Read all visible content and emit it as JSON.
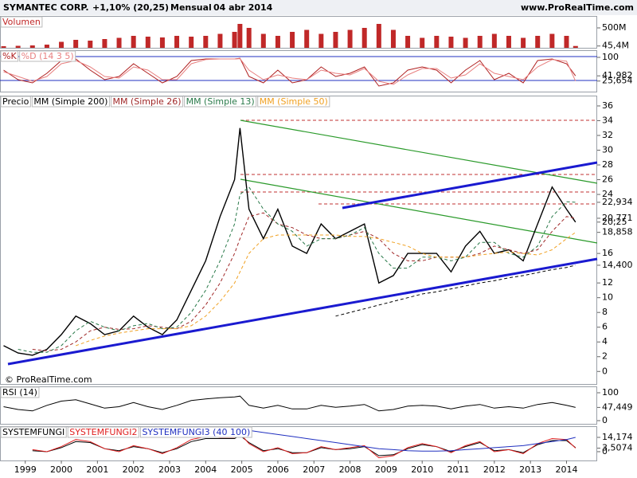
{
  "header": {
    "name": "SYMANTEC CORP.",
    "change": "+1,10% (20,25)",
    "period": "Mensual",
    "date": "04 abr 2014",
    "website": "www.ProRealTime.com",
    "copyright": "© ProRealTime.com"
  },
  "chart_data": [
    {
      "type": "bar",
      "x": [
        1998.4,
        1998.8,
        1999.2,
        1999.6,
        2000,
        2000.4,
        2000.8,
        2001.2,
        2001.6,
        2002,
        2002.4,
        2002.8,
        2003.2,
        2003.6,
        2004,
        2004.4,
        2004.8,
        2004.95,
        2005.2,
        2005.6,
        2006,
        2006.4,
        2006.8,
        2007.2,
        2007.6,
        2008,
        2008.4,
        2008.8,
        2009.2,
        2009.6,
        2010,
        2010.4,
        2010.8,
        2011.2,
        2011.6,
        2012,
        2012.4,
        2012.8,
        2013.2,
        2013.6,
        2014,
        2014.25
      ],
      "series": [
        {
          "name": "Volumen",
          "color": "#c02828",
          "values": [
            40000000,
            50000000,
            60000000,
            80000000,
            150000000,
            200000000,
            180000000,
            220000000,
            250000000,
            300000000,
            280000000,
            260000000,
            300000000,
            280000000,
            300000000,
            350000000,
            400000000,
            600000000,
            500000000,
            350000000,
            300000000,
            400000000,
            450000000,
            350000000,
            400000000,
            450000000,
            500000000,
            600000000,
            450000000,
            300000000,
            250000000,
            300000000,
            280000000,
            250000000,
            300000000,
            350000000,
            300000000,
            250000000,
            300000000,
            350000000,
            300000000,
            45400000
          ]
        }
      ],
      "xlim": [
        1998.3,
        2014.85
      ],
      "ylim": [
        0,
        800000000
      ],
      "yticks": [
        {
          "value": 500000000,
          "label": "500M"
        },
        {
          "value": 45400000,
          "label": "45,4M"
        }
      ]
    },
    {
      "type": "line",
      "x": [
        1998.4,
        1998.8,
        1999.2,
        1999.6,
        2000,
        2000.4,
        2000.8,
        2001.2,
        2001.6,
        2002,
        2002.4,
        2002.8,
        2003.2,
        2003.6,
        2004,
        2004.4,
        2004.8,
        2004.95,
        2005.2,
        2005.6,
        2006,
        2006.4,
        2006.8,
        2007.2,
        2007.6,
        2008,
        2008.4,
        2008.8,
        2009.2,
        2009.6,
        2010,
        2010.4,
        2010.8,
        2011.2,
        2011.6,
        2012,
        2012.4,
        2012.8,
        2013.2,
        2013.6,
        2014,
        2014.25
      ],
      "series": [
        {
          "name": "%K",
          "color": "#b02020",
          "values": [
            60,
            30,
            20,
            50,
            90,
            95,
            60,
            30,
            40,
            80,
            50,
            20,
            40,
            90,
            95,
            95,
            95,
            97,
            40,
            20,
            60,
            20,
            30,
            70,
            40,
            50,
            70,
            10,
            20,
            60,
            70,
            60,
            20,
            60,
            90,
            30,
            50,
            20,
            90,
            95,
            80,
            41.982
          ]
        },
        {
          "name": "%D (14 3 5)",
          "color": "#e88080",
          "values": [
            55,
            40,
            25,
            40,
            80,
            90,
            70,
            40,
            35,
            70,
            60,
            30,
            30,
            80,
            93,
            95,
            95,
            96,
            60,
            30,
            45,
            35,
            30,
            60,
            50,
            45,
            65,
            25,
            15,
            45,
            65,
            65,
            35,
            45,
            80,
            50,
            40,
            30,
            70,
            93,
            88,
            25.654
          ]
        }
      ],
      "xlim": [
        1998.3,
        2014.85
      ],
      "ylim": [
        -7.5,
        122.5
      ],
      "yticks": [
        100,
        {
          "value": 41.982,
          "label": "41,982"
        },
        {
          "value": 25.654,
          "label": "25,654"
        }
      ]
    },
    {
      "type": "line",
      "x": [
        1998.4,
        1998.8,
        1999.2,
        1999.6,
        2000,
        2000.4,
        2000.8,
        2001.2,
        2001.6,
        2002,
        2002.4,
        2002.8,
        2003.2,
        2003.6,
        2004,
        2004.4,
        2004.8,
        2004.95,
        2005.2,
        2005.6,
        2006,
        2006.4,
        2006.8,
        2007.2,
        2007.6,
        2008,
        2008.4,
        2008.8,
        2009.2,
        2009.6,
        2010,
        2010.4,
        2010.8,
        2011.2,
        2011.6,
        2012,
        2012.4,
        2012.8,
        2013.2,
        2013.6,
        2014,
        2014.25
      ],
      "series": [
        {
          "name": "Precio",
          "color": "#000000",
          "values": [
            3.5,
            2.5,
            2.2,
            3,
            5,
            7.5,
            6.5,
            5,
            5.5,
            7.5,
            6,
            5,
            7,
            11,
            15,
            21,
            26,
            33,
            22,
            18,
            22,
            17,
            16,
            20,
            18,
            19,
            20,
            12,
            13,
            16,
            16,
            16,
            13.5,
            17,
            19,
            16,
            16.5,
            15,
            20,
            25,
            22,
            20.25
          ]
        },
        {
          "name": "MM (Simple 200)",
          "color": "#000000",
          "dashed": true,
          "values": [
            null,
            null,
            null,
            null,
            null,
            null,
            null,
            null,
            null,
            null,
            null,
            null,
            null,
            null,
            null,
            null,
            null,
            null,
            null,
            null,
            null,
            null,
            null,
            null,
            7.5,
            8,
            8.5,
            9,
            9.5,
            10,
            10.5,
            10.8,
            11.2,
            11.6,
            12,
            12.3,
            12.7,
            13,
            13.4,
            13.8,
            14.1,
            14.4
          ]
        },
        {
          "name": "MM (Simple 26)",
          "color": "#a02828",
          "dashed": true,
          "values": [
            null,
            null,
            3,
            2.8,
            3,
            4,
            5.5,
            6,
            5.7,
            5.8,
            6.2,
            6,
            5.8,
            6.8,
            9,
            12,
            16,
            18,
            21,
            21.5,
            20,
            19.5,
            18.5,
            18,
            18,
            18.5,
            19,
            18,
            16,
            15,
            15,
            15.5,
            15.5,
            15.5,
            16,
            17,
            16.5,
            16,
            16.5,
            19,
            21,
            20.771
          ]
        },
        {
          "name": "MM (Simple 13)",
          "color": "#2a7a4a",
          "dashed": true,
          "values": [
            null,
            3,
            2.6,
            2.6,
            3.5,
            5.5,
            6.8,
            6,
            5.5,
            6.2,
            6.5,
            5.8,
            6,
            8,
            11,
            15,
            20,
            24,
            25,
            22,
            20,
            19,
            17,
            18,
            18,
            18.5,
            19.5,
            16,
            14,
            14,
            15.5,
            15.5,
            15,
            15.5,
            17.5,
            17.5,
            16,
            15.5,
            17,
            21,
            23,
            22.934
          ]
        },
        {
          "name": "MM (Simple 50)",
          "color": "#f0a020",
          "dashed": true,
          "values": [
            null,
            null,
            null,
            null,
            null,
            3.5,
            4.2,
            4.8,
            5.2,
            5.5,
            5.8,
            5.8,
            5.8,
            6.2,
            7.5,
            9.5,
            12,
            13.5,
            16,
            18,
            18.5,
            18.5,
            18.5,
            18.5,
            18.5,
            18.3,
            18.3,
            18,
            17.5,
            17,
            16,
            15.5,
            15.5,
            15.5,
            15.8,
            16,
            16.2,
            16,
            15.8,
            16.5,
            18,
            18.858
          ]
        }
      ],
      "xlim": [
        1998.3,
        2014.85
      ],
      "ylim": [
        -1.7,
        37.4
      ],
      "yticks": [
        0,
        2,
        4,
        6,
        8,
        10,
        12,
        {
          "value": 14.4,
          "label": "14,400"
        },
        16,
        {
          "value": 18.858,
          "label": "18,858"
        },
        {
          "value": 20.25,
          "label": "20,25"
        },
        {
          "value": 20.771,
          "label": "20,771"
        },
        {
          "value": 22.934,
          "label": "22,934"
        },
        24,
        26,
        28,
        30,
        32,
        34,
        36
      ]
    },
    {
      "type": "line",
      "x": [
        1998.4,
        1998.8,
        1999.2,
        1999.6,
        2000,
        2000.4,
        2000.8,
        2001.2,
        2001.6,
        2002,
        2002.4,
        2002.8,
        2003.2,
        2003.6,
        2004,
        2004.4,
        2004.8,
        2004.95,
        2005.2,
        2005.6,
        2006,
        2006.4,
        2006.8,
        2007.2,
        2007.6,
        2008,
        2008.4,
        2008.8,
        2009.2,
        2009.6,
        2010,
        2010.4,
        2010.8,
        2011.2,
        2011.6,
        2012,
        2012.4,
        2012.8,
        2013.2,
        2013.6,
        2014,
        2014.25
      ],
      "series": [
        {
          "name": "RSI (14)",
          "color": "#000000",
          "values": [
            50,
            40,
            35,
            55,
            70,
            75,
            60,
            45,
            50,
            65,
            50,
            40,
            55,
            72,
            78,
            82,
            85,
            88,
            55,
            45,
            55,
            42,
            42,
            55,
            48,
            52,
            58,
            35,
            40,
            52,
            55,
            52,
            42,
            52,
            58,
            45,
            50,
            45,
            58,
            65,
            55,
            47.449
          ]
        }
      ],
      "xlim": [
        1998.3,
        2014.85
      ],
      "ylim": [
        -11.4,
        122.9
      ],
      "yticks": [
        100,
        {
          "value": 47.449,
          "label": "47,449"
        },
        0
      ]
    },
    {
      "type": "line",
      "x": [
        1998.4,
        1998.8,
        1999.2,
        1999.6,
        2000,
        2000.4,
        2000.8,
        2001.2,
        2001.6,
        2002,
        2002.4,
        2002.8,
        2003.2,
        2003.6,
        2004,
        2004.4,
        2004.8,
        2004.95,
        2005.2,
        2005.6,
        2006,
        2006.4,
        2006.8,
        2007.2,
        2007.6,
        2008,
        2008.4,
        2008.8,
        2009.2,
        2009.6,
        2010,
        2010.4,
        2010.8,
        2011.2,
        2011.6,
        2012,
        2012.4,
        2012.8,
        2013.2,
        2013.6,
        2014,
        2014.25
      ],
      "series": [
        {
          "name": "SYSTEMFUNGI",
          "color": "#000000",
          "values": [
            null,
            null,
            1,
            0,
            4,
            10,
            9,
            3,
            1,
            5,
            3,
            -1,
            3,
            10,
            13,
            13,
            13,
            16,
            9,
            1,
            3,
            -1,
            -1,
            4,
            2,
            3,
            5,
            -4,
            -3,
            3,
            7,
            5,
            0,
            5,
            9,
            1,
            2,
            -1,
            7,
            11,
            11,
            4
          ]
        },
        {
          "name": "SYSTEMFUNGI2",
          "color": "#e02020",
          "values": [
            null,
            null,
            2,
            0,
            5,
            12,
            10,
            3,
            0,
            6,
            3,
            -2,
            4,
            12,
            15,
            14,
            14,
            18,
            8,
            0,
            4,
            -2,
            -1,
            5,
            2,
            4,
            6,
            -6,
            -4,
            4,
            8,
            5,
            -1,
            6,
            10,
            0,
            2,
            -2,
            8,
            13,
            12,
            3.5074
          ]
        },
        {
          "name": "SYSTEMFUNGI3 (40 100)",
          "color": "#2030c0",
          "values": [
            null,
            null,
            null,
            null,
            null,
            null,
            null,
            null,
            null,
            null,
            null,
            null,
            null,
            null,
            null,
            null,
            24,
            23,
            21,
            19,
            17,
            15,
            13,
            11,
            9,
            7,
            5,
            3,
            2,
            1,
            0.5,
            0.5,
            1,
            2,
            3,
            4,
            5,
            6,
            8,
            10,
            12,
            14.174
          ]
        }
      ],
      "xlim": [
        1998.3,
        2014.85
      ],
      "ylim": [
        -8.7,
        25.2
      ],
      "yticks": [
        {
          "value": 14.174,
          "label": "14,174"
        },
        {
          "value": 3.5074,
          "label": "3,5074"
        },
        0
      ],
      "xticks": [
        1999,
        2000,
        2001,
        2002,
        2003,
        2004,
        2005,
        2006,
        2007,
        2008,
        2009,
        2010,
        2011,
        2012,
        2013,
        2014
      ]
    }
  ]
}
